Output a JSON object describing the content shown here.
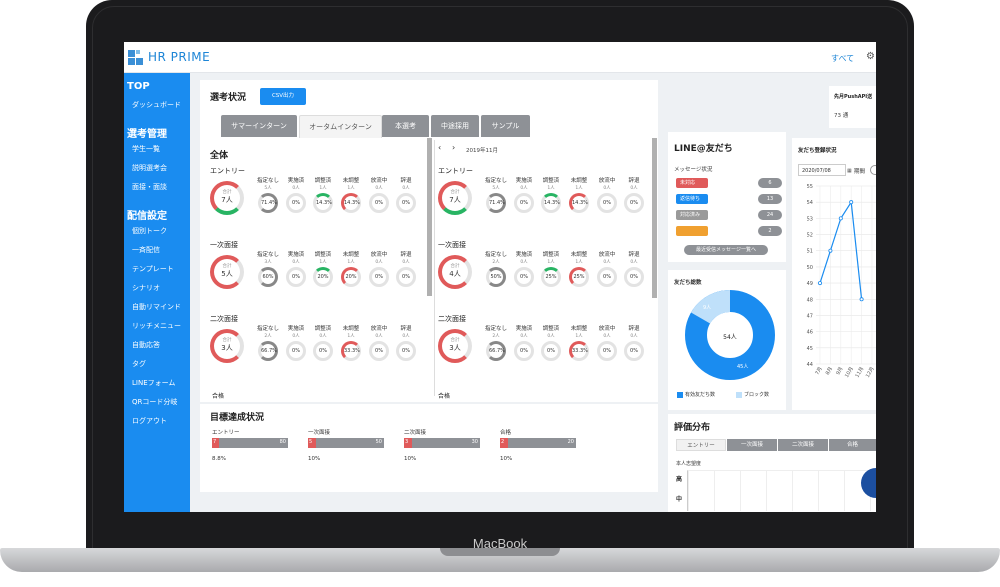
{
  "device": {
    "brand": "MacBook"
  },
  "app": {
    "title": "HR PRIME",
    "header_link": "すべて",
    "gear_icon": "gear-icon",
    "accent": "#1a8cf0"
  },
  "sidebar": {
    "sections": [
      {
        "title": "TOP",
        "items": [
          "ダッシュボード"
        ]
      },
      {
        "title": "選考管理",
        "items": [
          "学生一覧",
          "説明選考会",
          "面接・面談"
        ]
      },
      {
        "title": "配信設定",
        "items": [
          "個別トーク",
          "一斉配信",
          "テンプレート",
          "シナリオ",
          "自動リマインド",
          "リッチメニュー",
          "自動応答",
          "タグ",
          "LINEフォーム",
          "QRコード分岐",
          "ログアウト"
        ]
      }
    ]
  },
  "selection": {
    "title": "選考状況",
    "csv_label": "CSV出力",
    "tabs": [
      "サマーインターン",
      "オータムインターン",
      "本選考",
      "中途採用",
      "サンプル"
    ],
    "active_tab": 1,
    "left_heading": "全体",
    "month": "2019年11月",
    "prev": "‹",
    "next": "›",
    "columns": [
      "指定なし",
      "実施済",
      "調整済",
      "未調整",
      "放流中",
      "辞退"
    ],
    "total_label": "合計",
    "left_blocks": [
      {
        "name": "エントリー",
        "total": "7人",
        "counts": [
          "5人",
          "0人",
          "1人",
          "1人",
          "0人",
          "0人"
        ],
        "pcts": [
          "71.4%",
          "0%",
          "14.3%",
          "14.3%",
          "0%",
          "0%"
        ]
      },
      {
        "name": "一次面接",
        "total": "5人",
        "counts": [
          "3人",
          "0人",
          "1人",
          "1人",
          "0人",
          "0人"
        ],
        "pcts": [
          "60%",
          "0%",
          "20%",
          "20%",
          "0%",
          "0%"
        ]
      },
      {
        "name": "二次面接",
        "total": "3人",
        "counts": [
          "2人",
          "0人",
          "0人",
          "1人",
          "0人",
          "0人"
        ],
        "pcts": [
          "66.7%",
          "0%",
          "0%",
          "33.3%",
          "0%",
          "0%"
        ]
      }
    ],
    "right_blocks": [
      {
        "name": "エントリー",
        "total": "7人",
        "counts": [
          "5人",
          "0人",
          "1人",
          "1人",
          "0人",
          "0人"
        ],
        "pcts": [
          "71.4%",
          "0%",
          "14.3%",
          "14.3%",
          "0%",
          "0%"
        ]
      },
      {
        "name": "一次面接",
        "total": "4人",
        "counts": [
          "2人",
          "0人",
          "1人",
          "1人",
          "0人",
          "0人"
        ],
        "pcts": [
          "50%",
          "0%",
          "25%",
          "25%",
          "0%",
          "0%"
        ]
      },
      {
        "name": "二次面接",
        "total": "3人",
        "counts": [
          "2人",
          "0人",
          "0人",
          "1人",
          "0人",
          "0人"
        ],
        "pcts": [
          "66.7%",
          "0%",
          "0%",
          "33.3%",
          "0%",
          "0%"
        ]
      }
    ],
    "last_block": "合格"
  },
  "goals": {
    "title": "目標達成状況",
    "items": [
      {
        "name": "エントリー",
        "current": "7",
        "target": "80",
        "pct": "8.8%",
        "fraction": 0.088
      },
      {
        "name": "一次面接",
        "current": "5",
        "target": "50",
        "pct": "10%",
        "fraction": 0.1
      },
      {
        "name": "二次面接",
        "current": "3",
        "target": "30",
        "pct": "10%",
        "fraction": 0.1
      },
      {
        "name": "合格",
        "current": "2",
        "target": "20",
        "pct": "10%",
        "fraction": 0.1
      }
    ]
  },
  "line": {
    "title": "LINE@友だち",
    "message_status": "メッセージ状況",
    "statuses": [
      {
        "label": "未対応",
        "count": "6",
        "color": "#e05a5a"
      },
      {
        "label": "返信待ち",
        "count": "13",
        "color": "#1a8cf0"
      },
      {
        "label": "対応済み",
        "count": "24",
        "color": "#9a9a9a"
      },
      {
        "label": "",
        "count": "2",
        "color": "#f0a030"
      }
    ],
    "recent_button": "最近受信メッセージ一覧へ",
    "friends_total_title": "友だち総数",
    "total": "54人",
    "active": "45人",
    "blocked": "9人",
    "legend_active": "有効友だち数",
    "legend_blocked": "ブロック数",
    "api_title": "先月PushAPI送",
    "api_value": "73 通"
  },
  "registration": {
    "title": "友だち登録状況",
    "date": "2020/07/08",
    "period": "期間"
  },
  "chart_data": {
    "type": "line",
    "title": "友だち登録状況",
    "categories": [
      "7月",
      "8月",
      "9月",
      "10月",
      "11月",
      "12月"
    ],
    "values": [
      49,
      51,
      53,
      54,
      48,
      null
    ],
    "ylim": [
      44,
      55
    ],
    "y_ticks": [
      44,
      45,
      46,
      47,
      48,
      49,
      50,
      51,
      52,
      53,
      54,
      55
    ],
    "grid": true,
    "color": "#1a8cf0"
  },
  "evaluation": {
    "title": "評価分布",
    "tabs": [
      "エントリー",
      "一次面接",
      "二次面接",
      "合格"
    ],
    "label": "本人志望度",
    "rows": [
      "高",
      "中"
    ]
  }
}
